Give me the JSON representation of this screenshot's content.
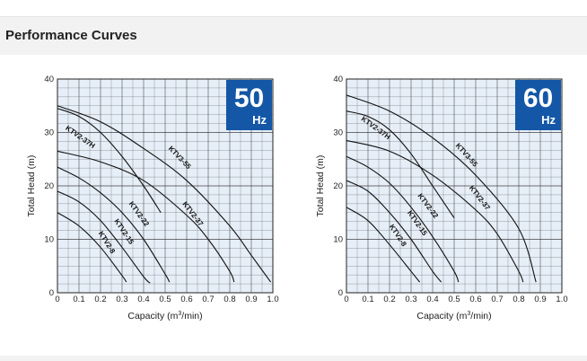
{
  "page": {
    "section_title": "Performance Curves"
  },
  "colors": {
    "plot_bg": "#e6eef7",
    "grid": "#1c1c1c",
    "curve": "#111111",
    "badge_bg": "#1357a6",
    "badge_text": "#ffffff"
  },
  "chart_data": [
    {
      "type": "line",
      "badge": {
        "value": "50",
        "unit": "Hz"
      },
      "xlabel_main": "Capacity (m",
      "xlabel_sup": "3",
      "xlabel_end": "/min)",
      "ylabel": "Total Head (m)",
      "xlim": [
        0,
        1.0
      ],
      "ylim": [
        0,
        40
      ],
      "x_ticks": [
        "0",
        "0.1",
        "0.2",
        "0.3",
        "0.4",
        "0.5",
        "0.6",
        "0.7",
        "0.8",
        "0.9",
        "1.0"
      ],
      "y_ticks": [
        "0",
        "10",
        "20",
        "30",
        "40"
      ],
      "grid": true,
      "series": [
        {
          "name": "KTV2-8",
          "x": [
            0,
            0.1,
            0.2,
            0.3,
            0.32
          ],
          "y": [
            15,
            12.5,
            8.5,
            3.2,
            2
          ],
          "label_at": [
            0.22,
            9.2
          ],
          "label_angle": 58
        },
        {
          "name": "KTV2-15",
          "x": [
            0,
            0.1,
            0.2,
            0.3,
            0.4,
            0.43
          ],
          "y": [
            19,
            17,
            13.5,
            8.5,
            3,
            1.8
          ],
          "label_at": [
            0.3,
            11.2
          ],
          "label_angle": 56
        },
        {
          "name": "KTV2-22",
          "x": [
            0,
            0.1,
            0.2,
            0.3,
            0.4,
            0.5,
            0.52
          ],
          "y": [
            23.5,
            21.5,
            18.7,
            15,
            10,
            3.5,
            2
          ],
          "label_at": [
            0.37,
            14.5
          ],
          "label_angle": 54
        },
        {
          "name": "KTV2-37",
          "x": [
            0,
            0.2,
            0.4,
            0.6,
            0.7,
            0.8,
            0.82
          ],
          "y": [
            26.5,
            24.5,
            21,
            14.5,
            10,
            4,
            2
          ],
          "label_at": [
            0.62,
            14.5
          ],
          "label_angle": 52
        },
        {
          "name": "KTV2-37H",
          "x": [
            0,
            0.1,
            0.2,
            0.3,
            0.4,
            0.48
          ],
          "y": [
            34.5,
            33,
            30,
            25.5,
            20,
            15
          ],
          "label_at": [
            0.1,
            28.8
          ],
          "label_angle": 35
        },
        {
          "name": "KTV3-55",
          "x": [
            0,
            0.2,
            0.4,
            0.6,
            0.8,
            0.9,
            0.99
          ],
          "y": [
            35,
            32,
            27,
            21,
            12.5,
            7,
            2
          ],
          "label_at": [
            0.56,
            25
          ],
          "label_angle": 46
        }
      ]
    },
    {
      "type": "line",
      "badge": {
        "value": "60",
        "unit": "Hz"
      },
      "xlabel_main": "Capacity (m",
      "xlabel_sup": "3",
      "xlabel_end": "/min)",
      "ylabel": "Total Head (m)",
      "xlim": [
        0,
        1.0
      ],
      "ylim": [
        0,
        40
      ],
      "x_ticks": [
        "0",
        "0.1",
        "0.2",
        "0.3",
        "0.4",
        "0.5",
        "0.6",
        "0.7",
        "0.8",
        "0.9",
        "1.0"
      ],
      "y_ticks": [
        "0",
        "10",
        "20",
        "30",
        "40"
      ],
      "grid": true,
      "series": [
        {
          "name": "KTV2-8",
          "x": [
            0,
            0.1,
            0.2,
            0.3,
            0.34
          ],
          "y": [
            16,
            13.5,
            9,
            4,
            2
          ],
          "label_at": [
            0.23,
            10.5
          ],
          "label_angle": 56
        },
        {
          "name": "KTV2-15",
          "x": [
            0,
            0.1,
            0.2,
            0.3,
            0.4,
            0.44
          ],
          "y": [
            21,
            19,
            15,
            10,
            4,
            2
          ],
          "label_at": [
            0.32,
            12.8
          ],
          "label_angle": 55
        },
        {
          "name": "KTV2-22",
          "x": [
            0,
            0.1,
            0.2,
            0.3,
            0.4,
            0.5,
            0.52
          ],
          "y": [
            25.5,
            23.5,
            20.5,
            16,
            10.5,
            4,
            2
          ],
          "label_at": [
            0.37,
            16
          ],
          "label_angle": 53
        },
        {
          "name": "KTV2-37",
          "x": [
            0,
            0.2,
            0.4,
            0.6,
            0.7,
            0.8,
            0.82
          ],
          "y": [
            28.5,
            26.5,
            22,
            15.5,
            11,
            4,
            2
          ],
          "label_at": [
            0.61,
            17.5
          ],
          "label_angle": 52
        },
        {
          "name": "KTV2-37H",
          "x": [
            0,
            0.1,
            0.2,
            0.3,
            0.4,
            0.5
          ],
          "y": [
            34,
            33,
            30.5,
            26,
            20,
            14
          ],
          "label_at": [
            0.13,
            30.5
          ],
          "label_angle": 36
        },
        {
          "name": "KTV3-55",
          "x": [
            0,
            0.2,
            0.4,
            0.6,
            0.8,
            0.88
          ],
          "y": [
            37,
            34,
            29,
            22,
            12,
            2
          ],
          "label_at": [
            0.55,
            25.5
          ],
          "label_angle": 48
        }
      ]
    }
  ]
}
